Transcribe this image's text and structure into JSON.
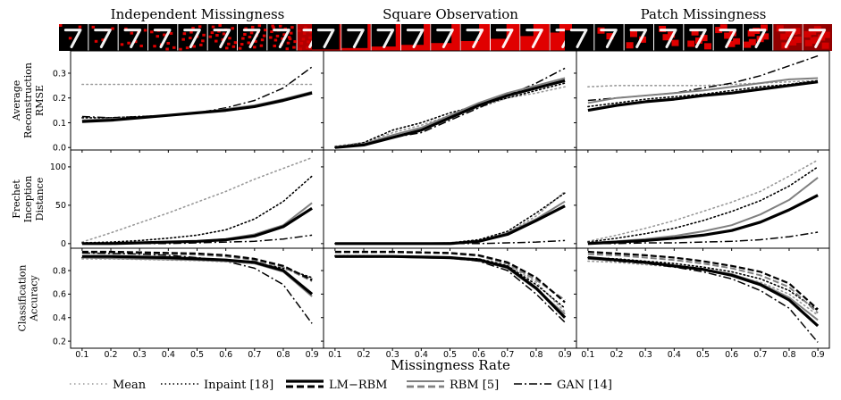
{
  "columns": [
    "Independent Missingness",
    "Square Observation",
    "Patch Missingness"
  ],
  "rows": [
    {
      "label_lines": [
        "Average",
        "Reconstruction",
        "RMSE"
      ],
      "ylim": [
        -0.01,
        0.39
      ],
      "yticks": [
        0.0,
        0.1,
        0.2,
        0.3
      ],
      "tick_labels": [
        "0.0",
        "0.1",
        "0.2",
        "0.3"
      ]
    },
    {
      "label_lines": [
        "Frechet",
        "Inception",
        "Distance"
      ],
      "ylim": [
        -6,
        122
      ],
      "yticks": [
        0,
        50,
        100
      ],
      "tick_labels": [
        "0",
        "50",
        "100"
      ]
    },
    {
      "label_lines": [
        "Classification",
        "Accuracy"
      ],
      "ylim": [
        0.14,
        0.99
      ],
      "yticks": [
        0.2,
        0.4,
        0.6,
        0.8
      ],
      "tick_labels": [
        "0.2",
        "0.4",
        "0.6",
        "0.8"
      ]
    }
  ],
  "xlabel": "Missingness Rate",
  "legend": [
    {
      "key": "mean",
      "label": "Mean"
    },
    {
      "key": "inpaint",
      "label": "Inpaint [18]"
    },
    {
      "key": "lmrbm",
      "label": "LM−RBM"
    },
    {
      "key": "rbm",
      "label": "RBM [5]"
    },
    {
      "key": "gan",
      "label": "GAN [14]"
    }
  ],
  "styles": {
    "mean": {
      "color": "#999999",
      "width": 1.6,
      "dash": "1.5,3.5"
    },
    "inpaint": {
      "color": "#000000",
      "width": 1.6,
      "dash": "1.5,3"
    },
    "lmrbm": {
      "color": "#000000",
      "width": 3.2,
      "dash": ""
    },
    "rbm": {
      "color": "#808080",
      "width": 2.0,
      "dash": ""
    },
    "gan": {
      "color": "#000000",
      "width": 1.5,
      "dash": "9,3,2,3"
    },
    "lmrbm_acc": {
      "color": "#000000",
      "width": 2.2,
      "dash": "7,3"
    },
    "rbm_acc": {
      "color": "#808080",
      "width": 2.0,
      "dash": "7,3"
    }
  },
  "chart_data": {
    "type": "line",
    "x": [
      0.1,
      0.2,
      0.3,
      0.4,
      0.5,
      0.6,
      0.7,
      0.8,
      0.9
    ],
    "xticks": [
      "0.1",
      "0.2",
      "0.3",
      "0.4",
      "0.5",
      "0.6",
      "0.7",
      "0.8",
      "0.9"
    ],
    "xlabel": "Missingness Rate",
    "panels": [
      {
        "row": 0,
        "col": 0,
        "series": [
          {
            "key": "mean",
            "values": [
              0.255,
              0.255,
              0.255,
              0.255,
              0.255,
              0.255,
              0.255,
              0.255,
              0.255
            ]
          },
          {
            "key": "inpaint",
            "values": [
              0.12,
              0.12,
              0.125,
              0.13,
              0.14,
              0.15,
              0.17,
              0.19,
              0.225
            ]
          },
          {
            "key": "lmrbm",
            "values": [
              0.105,
              0.11,
              0.12,
              0.13,
              0.14,
              0.15,
              0.165,
              0.19,
              0.22
            ]
          },
          {
            "key": "rbm",
            "values": [
              0.11,
              0.115,
              0.12,
              0.13,
              0.14,
              0.155,
              0.17,
              0.195,
              0.225
            ]
          },
          {
            "key": "gan",
            "values": [
              0.125,
              0.12,
              0.125,
              0.13,
              0.14,
              0.16,
              0.19,
              0.24,
              0.325
            ]
          }
        ]
      },
      {
        "row": 0,
        "col": 1,
        "series": [
          {
            "key": "mean",
            "values": [
              0.005,
              0.02,
              0.06,
              0.09,
              0.13,
              0.16,
              0.2,
              0.22,
              0.245
            ]
          },
          {
            "key": "inpaint",
            "values": [
              0.0,
              0.02,
              0.07,
              0.1,
              0.14,
              0.17,
              0.2,
              0.23,
              0.26
            ]
          },
          {
            "key": "lmrbm",
            "values": [
              0.0,
              0.01,
              0.04,
              0.07,
              0.12,
              0.17,
              0.21,
              0.24,
              0.27
            ]
          },
          {
            "key": "rbm",
            "values": [
              0.0,
              0.015,
              0.05,
              0.08,
              0.13,
              0.18,
              0.22,
              0.25,
              0.28
            ]
          },
          {
            "key": "gan",
            "values": [
              0.0,
              0.01,
              0.04,
              0.06,
              0.11,
              0.16,
              0.21,
              0.26,
              0.32
            ]
          }
        ]
      },
      {
        "row": 0,
        "col": 2,
        "series": [
          {
            "key": "mean",
            "values": [
              0.245,
              0.25,
              0.25,
              0.25,
              0.25,
              0.255,
              0.26,
              0.265,
              0.27
            ]
          },
          {
            "key": "inpaint",
            "values": [
              0.165,
              0.18,
              0.195,
              0.205,
              0.215,
              0.23,
              0.245,
              0.255,
              0.27
            ]
          },
          {
            "key": "lmrbm",
            "values": [
              0.15,
              0.17,
              0.185,
              0.195,
              0.21,
              0.22,
              0.235,
              0.25,
              0.265
            ]
          },
          {
            "key": "rbm",
            "values": [
              0.18,
              0.2,
              0.21,
              0.22,
              0.23,
              0.245,
              0.26,
              0.275,
              0.28
            ]
          },
          {
            "key": "gan",
            "values": [
              0.19,
              0.2,
              0.21,
              0.22,
              0.24,
              0.26,
              0.29,
              0.33,
              0.37
            ]
          }
        ]
      },
      {
        "row": 1,
        "col": 0,
        "series": [
          {
            "key": "mean",
            "values": [
              2,
              14,
              27,
              40,
              54,
              68,
              84,
              98,
              112
            ]
          },
          {
            "key": "inpaint",
            "values": [
              1,
              2,
              4,
              7,
              11,
              18,
              32,
              55,
              88
            ]
          },
          {
            "key": "lmrbm",
            "values": [
              0,
              0,
              1,
              2,
              3,
              5,
              10,
              22,
              46
            ]
          },
          {
            "key": "rbm",
            "values": [
              0,
              0,
              1,
              2,
              3,
              6,
              12,
              24,
              53
            ]
          },
          {
            "key": "gan",
            "values": [
              0,
              0,
              0,
              0,
              1,
              2,
              3,
              6,
              11
            ]
          }
        ]
      },
      {
        "row": 1,
        "col": 1,
        "series": [
          {
            "key": "mean",
            "values": [
              0,
              0,
              0,
              0,
              1,
              4,
              14,
              36,
              68
            ]
          },
          {
            "key": "inpaint",
            "values": [
              0,
              0,
              0,
              0,
              1,
              5,
              16,
              40,
              66
            ]
          },
          {
            "key": "lmrbm",
            "values": [
              0,
              0,
              0,
              0,
              0,
              3,
              12,
              30,
              49
            ]
          },
          {
            "key": "rbm",
            "values": [
              0,
              0,
              0,
              0,
              1,
              3,
              14,
              32,
              55
            ]
          },
          {
            "key": "gan",
            "values": [
              0,
              0,
              0,
              0,
              0,
              0,
              1,
              2,
              4
            ]
          }
        ]
      },
      {
        "row": 1,
        "col": 2,
        "series": [
          {
            "key": "mean",
            "values": [
              3,
              11,
              20,
              30,
              42,
              54,
              68,
              88,
              109
            ]
          },
          {
            "key": "inpaint",
            "values": [
              2,
              7,
              13,
              20,
              30,
              42,
              56,
              75,
              100
            ]
          },
          {
            "key": "lmrbm",
            "values": [
              0,
              2,
              4,
              7,
              11,
              17,
              28,
              44,
              63
            ]
          },
          {
            "key": "rbm",
            "values": [
              1,
              3,
              6,
              10,
              16,
              24,
              38,
              57,
              86
            ]
          },
          {
            "key": "gan",
            "values": [
              0,
              0,
              1,
              1,
              2,
              3,
              5,
              9,
              15
            ]
          }
        ]
      },
      {
        "row": 2,
        "col": 0,
        "series": [
          {
            "key": "mean",
            "values": [
              0.9,
              0.9,
              0.895,
              0.89,
              0.885,
              0.875,
              0.86,
              0.83,
              0.73
            ]
          },
          {
            "key": "inpaint",
            "values": [
              0.91,
              0.905,
              0.9,
              0.9,
              0.89,
              0.88,
              0.86,
              0.82,
              0.74
            ]
          },
          {
            "key": "lmrbm",
            "values": [
              0.92,
              0.92,
              0.915,
              0.91,
              0.9,
              0.89,
              0.87,
              0.8,
              0.6
            ]
          },
          {
            "key": "rbm",
            "values": [
              0.91,
              0.905,
              0.9,
              0.895,
              0.89,
              0.88,
              0.86,
              0.79,
              0.58
            ]
          },
          {
            "key": "lmrbm_acc",
            "values": [
              0.96,
              0.96,
              0.955,
              0.95,
              0.945,
              0.93,
              0.9,
              0.84,
              0.72
            ]
          },
          {
            "key": "rbm_acc",
            "values": [
              0.95,
              0.95,
              0.945,
              0.94,
              0.935,
              0.92,
              0.89,
              0.83,
              0.71
            ]
          },
          {
            "key": "gan",
            "values": [
              0.95,
              0.945,
              0.94,
              0.93,
              0.91,
              0.88,
              0.82,
              0.68,
              0.35
            ]
          }
        ]
      },
      {
        "row": 2,
        "col": 1,
        "series": [
          {
            "key": "mean",
            "values": [
              0.92,
              0.92,
              0.92,
              0.915,
              0.91,
              0.9,
              0.85,
              0.7,
              0.45
            ]
          },
          {
            "key": "inpaint",
            "values": [
              0.925,
              0.925,
              0.92,
              0.915,
              0.91,
              0.9,
              0.84,
              0.68,
              0.48
            ]
          },
          {
            "key": "lmrbm",
            "values": [
              0.92,
              0.92,
              0.92,
              0.915,
              0.91,
              0.89,
              0.83,
              0.65,
              0.4
            ]
          },
          {
            "key": "rbm",
            "values": [
              0.915,
              0.915,
              0.915,
              0.91,
              0.905,
              0.885,
              0.82,
              0.64,
              0.43
            ]
          },
          {
            "key": "lmrbm_acc",
            "values": [
              0.96,
              0.96,
              0.96,
              0.955,
              0.95,
              0.93,
              0.87,
              0.74,
              0.53
            ]
          },
          {
            "key": "rbm_acc",
            "values": [
              0.955,
              0.955,
              0.955,
              0.95,
              0.945,
              0.925,
              0.86,
              0.72,
              0.55
            ]
          },
          {
            "key": "gan",
            "values": [
              0.915,
              0.915,
              0.915,
              0.91,
              0.905,
              0.88,
              0.8,
              0.6,
              0.36
            ]
          }
        ]
      },
      {
        "row": 2,
        "col": 2,
        "series": [
          {
            "key": "mean",
            "values": [
              0.88,
              0.87,
              0.85,
              0.83,
              0.8,
              0.76,
              0.7,
              0.6,
              0.42
            ]
          },
          {
            "key": "inpaint",
            "values": [
              0.91,
              0.9,
              0.88,
              0.86,
              0.83,
              0.79,
              0.73,
              0.63,
              0.46
            ]
          },
          {
            "key": "lmrbm",
            "values": [
              0.91,
              0.89,
              0.87,
              0.84,
              0.81,
              0.76,
              0.68,
              0.55,
              0.33
            ]
          },
          {
            "key": "rbm",
            "values": [
              0.9,
              0.885,
              0.865,
              0.84,
              0.81,
              0.77,
              0.69,
              0.57,
              0.38
            ]
          },
          {
            "key": "lmrbm_acc",
            "values": [
              0.96,
              0.945,
              0.93,
              0.91,
              0.88,
              0.84,
              0.79,
              0.69,
              0.47
            ]
          },
          {
            "key": "rbm_acc",
            "values": [
              0.94,
              0.93,
              0.91,
              0.89,
              0.86,
              0.82,
              0.76,
              0.66,
              0.44
            ]
          },
          {
            "key": "gan",
            "values": [
              0.9,
              0.88,
              0.86,
              0.83,
              0.79,
              0.73,
              0.63,
              0.48,
              0.19
            ]
          }
        ]
      }
    ]
  }
}
